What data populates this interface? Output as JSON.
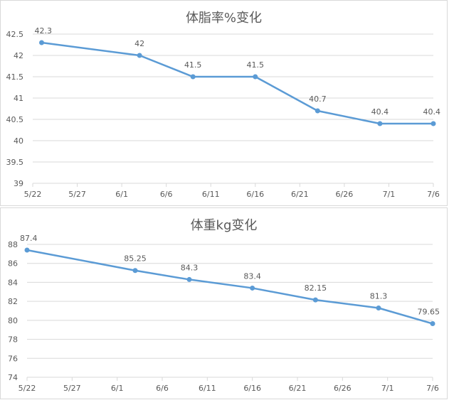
{
  "chart_data": [
    {
      "type": "line",
      "title": "体脂率%变化",
      "xlabel": "",
      "ylabel": "",
      "x": [
        "5/23",
        "6/3",
        "6/9",
        "6/16",
        "6/23",
        "6/30",
        "7/6"
      ],
      "y": [
        42.3,
        42,
        41.5,
        41.5,
        40.7,
        40.4,
        40.4
      ],
      "data_labels": [
        "42.3",
        "42",
        "41.5",
        "41.5",
        "40.7",
        "40.4",
        "40.4"
      ],
      "x_ticks": [
        "5/22",
        "5/27",
        "6/1",
        "6/6",
        "6/11",
        "6/16",
        "6/21",
        "6/26",
        "7/1",
        "7/6"
      ],
      "y_ticks": [
        "39",
        "39.5",
        "40",
        "40.5",
        "41",
        "41.5",
        "42",
        "42.5"
      ],
      "xlim": [
        "5/22",
        "7/6"
      ],
      "ylim": [
        39,
        42.5
      ],
      "grid": true,
      "line_color": "#5B9BD5",
      "grid_color": "#d9d9d9",
      "text_color": "#595959"
    },
    {
      "type": "line",
      "title": "体重kg变化",
      "xlabel": "",
      "ylabel": "",
      "x": [
        "5/22",
        "6/3",
        "6/9",
        "6/16",
        "6/23",
        "6/30",
        "7/6"
      ],
      "y": [
        87.4,
        85.25,
        84.3,
        83.4,
        82.15,
        81.3,
        79.65
      ],
      "data_labels": [
        "87.4",
        "85.25",
        "84.3",
        "83.4",
        "82.15",
        "81.3",
        "79.65"
      ],
      "x_ticks": [
        "5/22",
        "5/27",
        "6/1",
        "6/6",
        "6/11",
        "6/16",
        "6/21",
        "6/26",
        "7/1",
        "7/6"
      ],
      "y_ticks": [
        "74",
        "76",
        "78",
        "80",
        "82",
        "84",
        "86",
        "88"
      ],
      "xlim": [
        "5/22",
        "7/6"
      ],
      "ylim": [
        74,
        88
      ],
      "grid": true,
      "line_color": "#5B9BD5",
      "grid_color": "#d9d9d9",
      "text_color": "#595959"
    }
  ]
}
